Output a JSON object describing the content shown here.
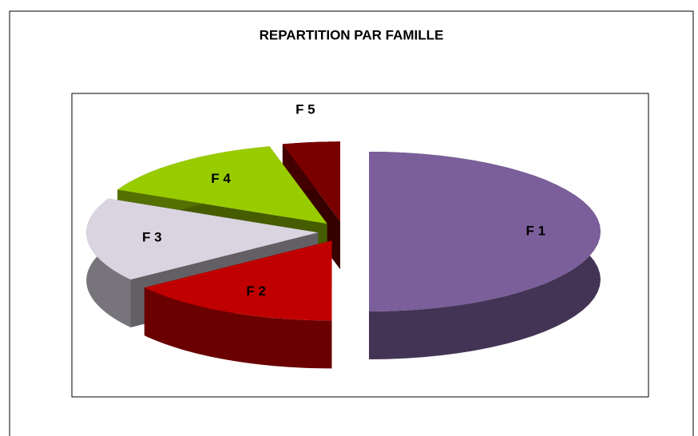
{
  "chart_data": {
    "type": "pie",
    "title": "REPARTITION PAR FAMILLE",
    "categories": [
      "F 1",
      "F 2",
      "F 3",
      "F 4",
      "F 5"
    ],
    "values": [
      50,
      15,
      17,
      14,
      4
    ],
    "colors": [
      "#7a5f9a",
      "#c00000",
      "#d9d4e0",
      "#99cc00",
      "#7a0000"
    ],
    "exploded": true,
    "three_d": true
  }
}
